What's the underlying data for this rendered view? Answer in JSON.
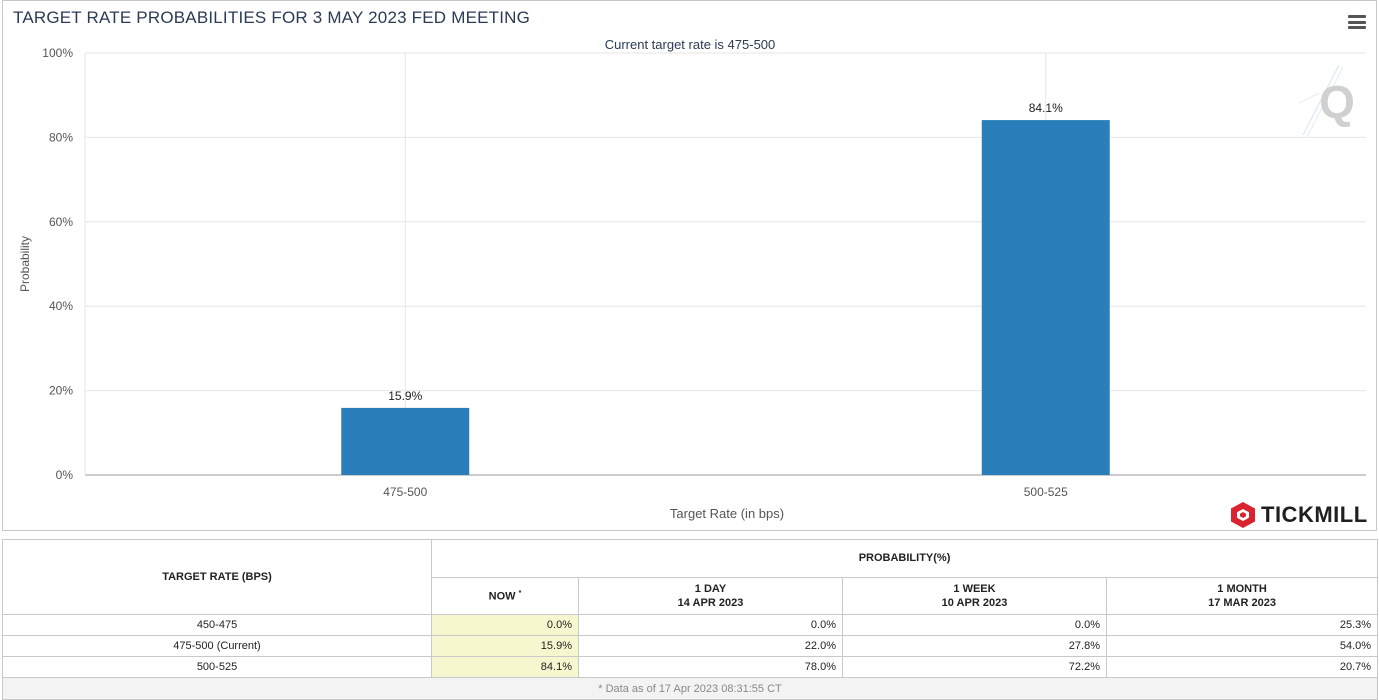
{
  "chart": {
    "title": "TARGET RATE PROBABILITIES FOR 3 MAY 2023 FED MEETING",
    "subtitle": "Current target rate is 475-500",
    "brand": "TICKMILL",
    "watermark": "Q"
  },
  "chart_data": {
    "type": "bar",
    "title": "TARGET RATE PROBABILITIES FOR 3 MAY 2023 FED MEETING",
    "subtitle": "Current target rate is 475-500",
    "xlabel": "Target Rate (in bps)",
    "ylabel": "Probability",
    "categories": [
      "475-500",
      "500-525"
    ],
    "values": [
      15.9,
      84.1
    ],
    "data_labels": [
      "15.9%",
      "84.1%"
    ],
    "ylim": [
      0,
      100
    ],
    "yticks": [
      0,
      20,
      40,
      60,
      80,
      100
    ],
    "ytick_labels": [
      "0%",
      "20%",
      "40%",
      "60%",
      "80%",
      "100%"
    ],
    "grid": true,
    "bar_color": "#2a7fba"
  },
  "table": {
    "header_target": "TARGET RATE (BPS)",
    "header_prob": "PROBABILITY(%)",
    "col_now": "NOW",
    "col_now_mark": "*",
    "col_1day_a": "1 DAY",
    "col_1day_b": "14 APR 2023",
    "col_1week_a": "1 WEEK",
    "col_1week_b": "10 APR 2023",
    "col_1month_a": "1 MONTH",
    "col_1month_b": "17 MAR 2023",
    "rows": [
      {
        "rate": "450-475",
        "now": "0.0%",
        "day": "0.0%",
        "week": "0.0%",
        "month": "25.3%"
      },
      {
        "rate": "475-500 (Current)",
        "now": "15.9%",
        "day": "22.0%",
        "week": "27.8%",
        "month": "54.0%"
      },
      {
        "rate": "500-525",
        "now": "84.1%",
        "day": "78.0%",
        "week": "72.2%",
        "month": "20.7%"
      }
    ],
    "footer": "* Data as of 17 Apr 2023 08:31:55 CT"
  }
}
